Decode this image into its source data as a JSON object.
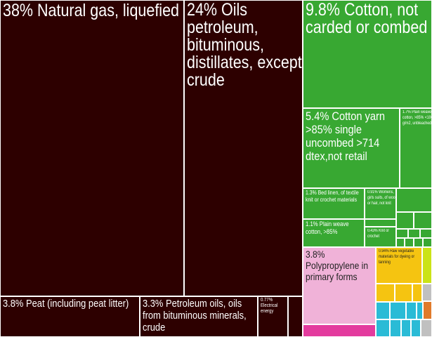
{
  "chart_data": {
    "type": "treemap",
    "title": "",
    "unit": "%",
    "colors": {
      "mineral_products": "#2d0000",
      "textiles": "#38a832",
      "plastics": "#f0b2d8",
      "vegetable_products": "#f5c411",
      "animal_products": "#2abbd6",
      "chemicals": "#e33b9e",
      "misc_yellowgreen": "#cbe316",
      "metals_orange": "#e07a2a",
      "minor_gray": "#c0c0c0"
    },
    "items": [
      {
        "label": "38% Natural gas, liquefied",
        "value": 38,
        "group": "mineral_products"
      },
      {
        "label": "24% Oils petroleum, bituminous, distillates, except crude",
        "value": 24,
        "group": "mineral_products"
      },
      {
        "label": "3.8% Peat (including peat litter)",
        "value": 3.8,
        "group": "mineral_products"
      },
      {
        "label": "3.3% Petroleum oils, oils from bituminous minerals, crude",
        "value": 3.3,
        "group": "mineral_products"
      },
      {
        "label": "0.77% Electrical energy",
        "value": 0.77,
        "group": "mineral_products"
      },
      {
        "label": "9.8% Cotton, not carded or combed",
        "value": 9.8,
        "group": "textiles"
      },
      {
        "label": "5.4% Cotton yarn >85% single uncombed >714 dtex,not retail",
        "value": 5.4,
        "group": "textiles"
      },
      {
        "label": "1.7% Plain weave cotton, >85% <100 g/m2, unbleached",
        "value": 1.7,
        "group": "textiles"
      },
      {
        "label": "1.3% Bed linen, of textile knit or crochet materials",
        "value": 1.3,
        "group": "textiles"
      },
      {
        "label": "0.91% Womens, girls suits, of wool or hair, not knit",
        "value": 0.91,
        "group": "textiles"
      },
      {
        "label": "1.1% Plain weave cotton, >85%",
        "value": 1.1,
        "group": "textiles"
      },
      {
        "label": "0.43% Knit or crochet",
        "value": 0.43,
        "group": "textiles"
      },
      {
        "label": "3.8% Polypropylene in primary forms",
        "value": 3.8,
        "group": "plastics"
      },
      {
        "label": "0.94% Raw vegetable materials for dyeing or tanning",
        "value": 0.94,
        "group": "vegetable_products"
      }
    ]
  }
}
